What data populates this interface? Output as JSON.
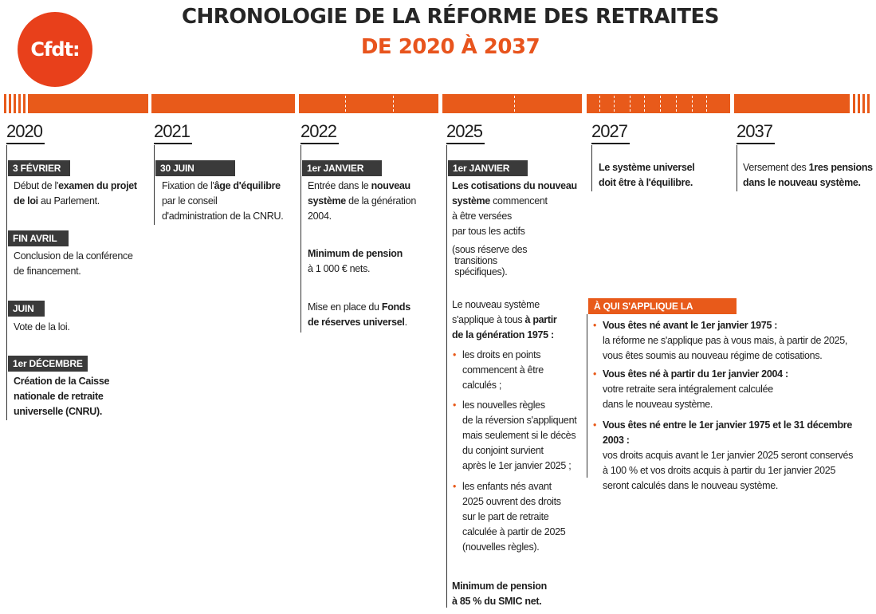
{
  "header": {
    "logo_text": "Cfdt:",
    "title_line1": "CHRONOLOGIE DE LA RÉFORME DES RETRAITES",
    "title_line2": "DE 2020 À 2037"
  },
  "colors": {
    "accent": "#e85a1a",
    "dark": "#3a3a3a",
    "text": "#1e1e1e"
  },
  "years": [
    "2020",
    "2021",
    "2022",
    "2025",
    "2027",
    "2037"
  ],
  "y2020": {
    "tag1": "3 FÉVRIER",
    "t1a": "Début de l'",
    "t1b": "examen du projet",
    "t1c": "de loi",
    "t1d": " au Parlement.",
    "tag2": "FIN AVRIL",
    "t2a": "Conclusion de la conférence",
    "t2b": "de financement.",
    "tag3": "JUIN",
    "t3": "Vote de la loi.",
    "tag4": "1er DÉCEMBRE",
    "t4a": "Création de la Caisse",
    "t4b": "nationale de retraite",
    "t4c": "universelle (CNRU)."
  },
  "y2021": {
    "tag1": "30 JUIN",
    "t1a": "Fixation de l'",
    "t1b": "âge d'équilibre",
    "t1c": "par le conseil",
    "t1d": "d'administration de la CNRU."
  },
  "y2022": {
    "tag1": "1er JANVIER",
    "t1a": "Entrée dans le ",
    "t1b": "nouveau",
    "t1c": "système",
    "t1d": " de la génération",
    "t1e": "2004.",
    "t2a": "Minimum de pension",
    "t2b": "à 1 000 € nets.",
    "t3a": "Mise en place du ",
    "t3b": "Fonds",
    "t3c": "de réserves universel",
    "t3d": "."
  },
  "y2025": {
    "tag1": "1er JANVIER",
    "l1": "Les cotisations du nouveau",
    "l2a": "système",
    "l2b": " commencent",
    "l3": "à être versées",
    "l4": "par tous les actifs",
    "l5": "(sous réserve des",
    "l6": "transitions",
    "l7": "spécifiques).",
    "m1": "Le nouveau système",
    "m2a": "s'applique à tous ",
    "m2b": "à partir",
    "m3": "de la génération 1975 :",
    "b1": [
      "les droits en points",
      "commencent à être",
      "calculés ;"
    ],
    "b2": [
      "les nouvelles règles",
      "de la réversion s'appliquent",
      "mais seulement si le décès",
      "du conjoint survient",
      "après le 1er janvier 2025 ;"
    ],
    "b3": [
      "les enfants nés avant",
      "2025 ouvrent des droits",
      "sur le part de retraite",
      "calculée à partir de 2025",
      "(nouvelles règles)."
    ],
    "min1": "Minimum de pension",
    "min2": "à 85 % du SMIC net."
  },
  "y2027": {
    "l1": "Le système universel",
    "l2": "doit être à l'équilibre."
  },
  "y2037": {
    "l1a": "Versement des ",
    "l1b": "1res pensions",
    "l2": "dans le nouveau système."
  },
  "scope": {
    "tag": "À QUI S'APPLIQUE LA RÉFORME ?",
    "s1h": "Vous êtes né avant le 1er janvier 1975 :",
    "s1a": "la réforme ne s'applique pas à vous mais, à partir de 2025,",
    "s1b": "vous êtes soumis au nouveau régime de cotisations.",
    "s2h": "Vous êtes né à partir du 1er janvier 2004 :",
    "s2a": "votre retraite sera intégralement calculée",
    "s2b": "dans le nouveau système.",
    "s3h": "Vous êtes né entre le 1er janvier 1975 et le 31 décembre 2003 :",
    "s3a": "vos droits acquis avant le 1er janvier 2025 seront conservés",
    "s3b": "à 100 % et vos droits acquis à partir du 1er janvier 2025",
    "s3c": "seront calculés dans le nouveau système."
  }
}
